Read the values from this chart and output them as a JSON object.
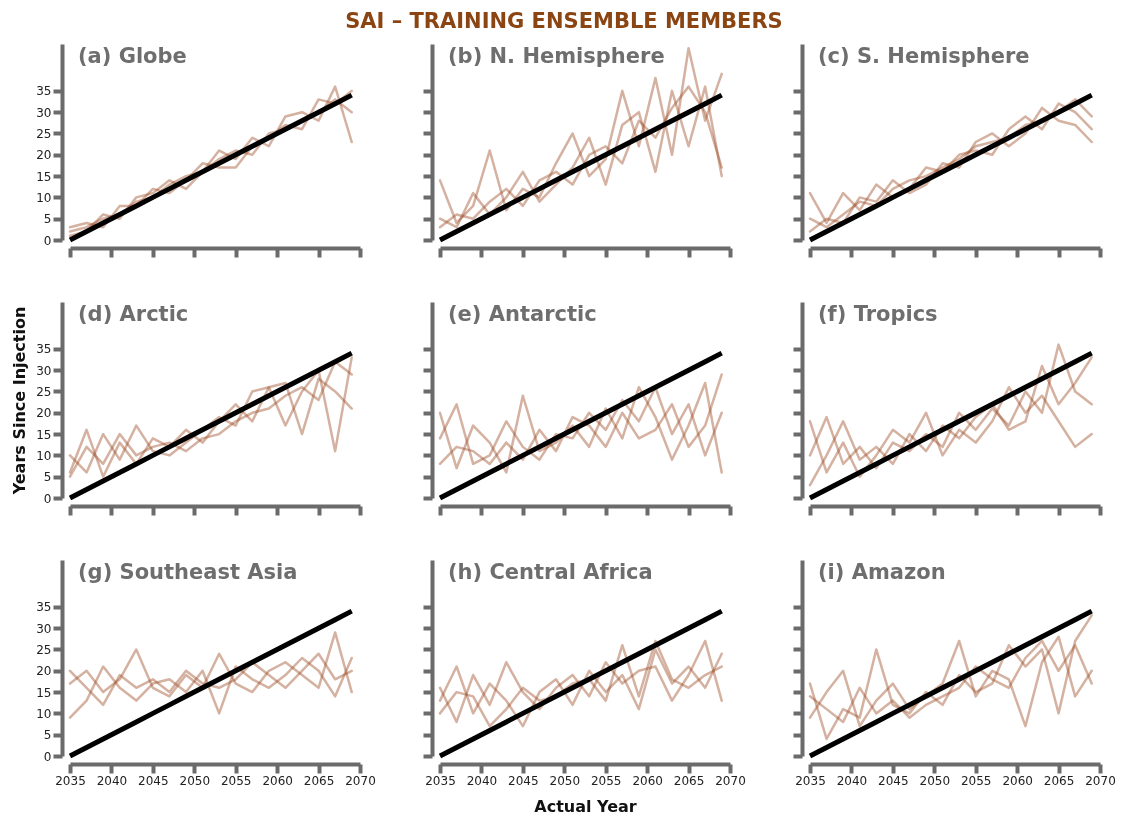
{
  "chart_data": [
    {
      "type": "line",
      "title": "(a) Globe",
      "annotations": [
        "SAI – TRAINING ENSEMBLE MEMBERS"
      ],
      "x": [
        2035,
        2037,
        2039,
        2041,
        2043,
        2045,
        2047,
        2049,
        2051,
        2053,
        2055,
        2057,
        2059,
        2061,
        2063,
        2065,
        2067,
        2069
      ],
      "xlim": [
        2035,
        2070
      ],
      "xticks": [
        2035,
        2040,
        2045,
        2050,
        2055,
        2060,
        2065,
        2070
      ],
      "ylim": [
        0,
        46
      ],
      "yticks": [
        0,
        5,
        10,
        15,
        20,
        25,
        30,
        35
      ],
      "tick_labels": "y",
      "series": [
        {
          "color": "#a0522d",
          "values": [
            2,
            3,
            5,
            6,
            9,
            10,
            13,
            15,
            16,
            19,
            21,
            20,
            25,
            26,
            28,
            30,
            33,
            30
          ]
        },
        {
          "color": "#a0522d",
          "values": [
            3,
            4,
            3,
            8,
            8,
            12,
            11,
            14,
            18,
            17,
            17,
            22,
            24,
            27,
            26,
            33,
            32,
            35
          ]
        },
        {
          "color": "#a0522d",
          "values": [
            1,
            2,
            6,
            5,
            10,
            11,
            14,
            12,
            16,
            21,
            19,
            24,
            22,
            29,
            30,
            28,
            36,
            23
          ]
        },
        {
          "type": "line",
          "color": "#000000",
          "values": [
            0,
            2,
            4,
            6,
            8,
            10,
            12,
            14,
            16,
            18,
            20,
            22,
            24,
            26,
            28,
            30,
            32,
            34
          ]
        }
      ]
    },
    {
      "type": "line",
      "title": "(b) N. Hemisphere",
      "x": [
        2035,
        2037,
        2039,
        2041,
        2043,
        2045,
        2047,
        2049,
        2051,
        2053,
        2055,
        2057,
        2059,
        2061,
        2063,
        2065,
        2067,
        2069
      ],
      "xlim": [
        2035,
        2070
      ],
      "xticks": [
        2035,
        2040,
        2045,
        2050,
        2055,
        2060,
        2065,
        2070
      ],
      "ylim": [
        0,
        46
      ],
      "yticks": [
        0,
        5,
        10,
        15,
        20,
        25,
        30,
        35
      ],
      "tick_labels": false,
      "series": [
        {
          "color": "#a0522d",
          "values": [
            3,
            6,
            5,
            9,
            12,
            8,
            14,
            16,
            13,
            20,
            22,
            18,
            28,
            24,
            31,
            36,
            30,
            17
          ]
        },
        {
          "color": "#a0522d",
          "values": [
            14,
            4,
            8,
            21,
            7,
            12,
            10,
            18,
            25,
            15,
            19,
            35,
            22,
            38,
            20,
            45,
            28,
            39
          ]
        },
        {
          "color": "#a0522d",
          "values": [
            5,
            3,
            11,
            6,
            10,
            16,
            9,
            13,
            17,
            24,
            13,
            27,
            30,
            16,
            35,
            22,
            36,
            15
          ]
        },
        {
          "type": "line",
          "color": "#000000",
          "values": [
            0,
            2,
            4,
            6,
            8,
            10,
            12,
            14,
            16,
            18,
            20,
            22,
            24,
            26,
            28,
            30,
            32,
            34
          ]
        }
      ]
    },
    {
      "type": "line",
      "title": "(c) S. Hemisphere",
      "x": [
        2035,
        2037,
        2039,
        2041,
        2043,
        2045,
        2047,
        2049,
        2051,
        2053,
        2055,
        2057,
        2059,
        2061,
        2063,
        2065,
        2067,
        2069
      ],
      "xlim": [
        2035,
        2070
      ],
      "xticks": [
        2035,
        2040,
        2045,
        2050,
        2055,
        2060,
        2065,
        2070
      ],
      "ylim": [
        0,
        46
      ],
      "yticks": [
        0,
        5,
        10,
        15,
        20,
        25,
        30,
        35
      ],
      "tick_labels": false,
      "series": [
        {
          "color": "#a0522d",
          "values": [
            5,
            3,
            6,
            9,
            8,
            12,
            14,
            15,
            17,
            19,
            22,
            23,
            24,
            27,
            28,
            30,
            33,
            29
          ]
        },
        {
          "color": "#a0522d",
          "values": [
            11,
            4,
            11,
            7,
            13,
            10,
            12,
            17,
            16,
            20,
            21,
            20,
            26,
            29,
            26,
            32,
            30,
            26
          ]
        },
        {
          "color": "#a0522d",
          "values": [
            2,
            5,
            4,
            10,
            9,
            14,
            11,
            13,
            18,
            17,
            23,
            25,
            22,
            25,
            31,
            28,
            27,
            23
          ]
        },
        {
          "type": "line",
          "color": "#000000",
          "values": [
            0,
            2,
            4,
            6,
            8,
            10,
            12,
            14,
            16,
            18,
            20,
            22,
            24,
            26,
            28,
            30,
            32,
            34
          ]
        }
      ]
    },
    {
      "type": "line",
      "title": "(d) Arctic",
      "ylabel": "Years Since Injection",
      "x": [
        2035,
        2037,
        2039,
        2041,
        2043,
        2045,
        2047,
        2049,
        2051,
        2053,
        2055,
        2057,
        2059,
        2061,
        2063,
        2065,
        2067,
        2069
      ],
      "xlim": [
        2035,
        2070
      ],
      "xticks": [
        2035,
        2040,
        2045,
        2050,
        2055,
        2060,
        2065,
        2070
      ],
      "ylim": [
        0,
        46
      ],
      "yticks": [
        0,
        5,
        10,
        15,
        20,
        25,
        30,
        35
      ],
      "tick_labels": "y",
      "series": [
        {
          "color": "#a0522d",
          "values": [
            5,
            12,
            8,
            15,
            10,
            12,
            13,
            11,
            14,
            15,
            18,
            20,
            21,
            24,
            26,
            23,
            32,
            29
          ]
        },
        {
          "color": "#a0522d",
          "values": [
            10,
            6,
            15,
            9,
            17,
            11,
            10,
            13,
            16,
            19,
            17,
            25,
            26,
            17,
            25,
            30,
            11,
            33
          ]
        },
        {
          "color": "#a0522d",
          "values": [
            6,
            16,
            5,
            13,
            8,
            14,
            12,
            16,
            13,
            18,
            22,
            18,
            26,
            27,
            15,
            28,
            25,
            21
          ]
        },
        {
          "type": "line",
          "color": "#000000",
          "values": [
            0,
            2,
            4,
            6,
            8,
            10,
            12,
            14,
            16,
            18,
            20,
            22,
            24,
            26,
            28,
            30,
            32,
            34
          ]
        }
      ]
    },
    {
      "type": "line",
      "title": "(e) Antarctic",
      "x": [
        2035,
        2037,
        2039,
        2041,
        2043,
        2045,
        2047,
        2049,
        2051,
        2053,
        2055,
        2057,
        2059,
        2061,
        2063,
        2065,
        2067,
        2069
      ],
      "xlim": [
        2035,
        2070
      ],
      "xticks": [
        2035,
        2040,
        2045,
        2050,
        2055,
        2060,
        2065,
        2070
      ],
      "ylim": [
        0,
        46
      ],
      "yticks": [
        0,
        5,
        10,
        15,
        20,
        25,
        30,
        35
      ],
      "tick_labels": false,
      "series": [
        {
          "color": "#a0522d",
          "values": [
            14,
            22,
            8,
            10,
            18,
            12,
            9,
            15,
            14,
            20,
            16,
            23,
            18,
            26,
            15,
            22,
            10,
            20
          ]
        },
        {
          "color": "#a0522d",
          "values": [
            20,
            7,
            17,
            13,
            6,
            24,
            11,
            13,
            17,
            12,
            21,
            14,
            26,
            19,
            9,
            17,
            27,
            6
          ]
        },
        {
          "color": "#a0522d",
          "values": [
            8,
            12,
            11,
            8,
            13,
            9,
            16,
            11,
            19,
            17,
            12,
            20,
            14,
            16,
            22,
            12,
            17,
            29
          ]
        },
        {
          "type": "line",
          "color": "#000000",
          "values": [
            0,
            2,
            4,
            6,
            8,
            10,
            12,
            14,
            16,
            18,
            20,
            22,
            24,
            26,
            28,
            30,
            32,
            34
          ]
        }
      ]
    },
    {
      "type": "line",
      "title": "(f) Tropics",
      "x": [
        2035,
        2037,
        2039,
        2041,
        2043,
        2045,
        2047,
        2049,
        2051,
        2053,
        2055,
        2057,
        2059,
        2061,
        2063,
        2065,
        2067,
        2069
      ],
      "xlim": [
        2035,
        2070
      ],
      "xticks": [
        2035,
        2040,
        2045,
        2050,
        2055,
        2060,
        2065,
        2070
      ],
      "ylim": [
        0,
        46
      ],
      "yticks": [
        0,
        5,
        10,
        15,
        20,
        25,
        30,
        35
      ],
      "tick_labels": false,
      "series": [
        {
          "color": "#a0522d",
          "values": [
            3,
            10,
            18,
            9,
            12,
            8,
            15,
            11,
            17,
            14,
            19,
            22,
            16,
            18,
            31,
            22,
            27,
            33
          ]
        },
        {
          "color": "#a0522d",
          "values": [
            18,
            6,
            13,
            5,
            10,
            16,
            13,
            20,
            10,
            16,
            13,
            18,
            26,
            20,
            24,
            18,
            12,
            15
          ]
        },
        {
          "color": "#a0522d",
          "values": [
            10,
            19,
            8,
            12,
            7,
            13,
            11,
            15,
            12,
            20,
            16,
            21,
            17,
            25,
            20,
            36,
            25,
            22
          ]
        },
        {
          "type": "line",
          "color": "#000000",
          "values": [
            0,
            2,
            4,
            6,
            8,
            10,
            12,
            14,
            16,
            18,
            20,
            22,
            24,
            26,
            28,
            30,
            32,
            34
          ]
        }
      ]
    },
    {
      "type": "line",
      "title": "(g) Southeast Asia",
      "x": [
        2035,
        2037,
        2039,
        2041,
        2043,
        2045,
        2047,
        2049,
        2051,
        2053,
        2055,
        2057,
        2059,
        2061,
        2063,
        2065,
        2067,
        2069
      ],
      "xlim": [
        2035,
        2070
      ],
      "xticks": [
        2035,
        2040,
        2045,
        2050,
        2055,
        2060,
        2065,
        2070
      ],
      "ylim": [
        0,
        46
      ],
      "yticks": [
        0,
        5,
        10,
        15,
        20,
        25,
        30,
        35
      ],
      "series": [
        {
          "color": "#a0522d",
          "values": [
            17,
            20,
            15,
            18,
            25,
            16,
            14,
            19,
            16,
            24,
            17,
            15,
            20,
            22,
            19,
            16,
            29,
            15
          ]
        },
        {
          "color": "#a0522d",
          "values": [
            9,
            13,
            21,
            16,
            13,
            17,
            18,
            15,
            20,
            10,
            21,
            18,
            16,
            19,
            23,
            20,
            14,
            23
          ]
        },
        {
          "color": "#a0522d",
          "values": [
            20,
            16,
            12,
            19,
            16,
            18,
            15,
            20,
            17,
            16,
            18,
            22,
            19,
            16,
            20,
            24,
            18,
            20
          ]
        },
        {
          "type": "line",
          "color": "#000000",
          "values": [
            0,
            2,
            4,
            6,
            8,
            10,
            12,
            14,
            16,
            18,
            20,
            22,
            24,
            26,
            28,
            30,
            32,
            34
          ]
        }
      ]
    },
    {
      "type": "line",
      "title": "(h) Central Africa",
      "xlabel": "Actual Year",
      "x": [
        2035,
        2037,
        2039,
        2041,
        2043,
        2045,
        2047,
        2049,
        2051,
        2053,
        2055,
        2057,
        2059,
        2061,
        2063,
        2065,
        2067,
        2069
      ],
      "xlim": [
        2035,
        2070
      ],
      "xticks": [
        2035,
        2040,
        2045,
        2050,
        2055,
        2060,
        2065,
        2070
      ],
      "ylim": [
        0,
        46
      ],
      "yticks": [
        0,
        5,
        10,
        15,
        20,
        25,
        30,
        35
      ],
      "tick_labels": "x",
      "series": [
        {
          "color": "#a0522d",
          "values": [
            13,
            21,
            10,
            17,
            13,
            7,
            15,
            18,
            12,
            20,
            15,
            19,
            11,
            25,
            17,
            21,
            16,
            24
          ]
        },
        {
          "color": "#a0522d",
          "values": [
            16,
            8,
            19,
            12,
            22,
            15,
            11,
            16,
            19,
            14,
            22,
            17,
            20,
            21,
            13,
            19,
            27,
            13
          ]
        },
        {
          "color": "#a0522d",
          "values": [
            10,
            15,
            14,
            7,
            11,
            16,
            13,
            14,
            17,
            18,
            13,
            26,
            14,
            27,
            18,
            16,
            19,
            21
          ]
        },
        {
          "type": "line",
          "color": "#000000",
          "values": [
            0,
            2,
            4,
            6,
            8,
            10,
            12,
            14,
            16,
            18,
            20,
            22,
            24,
            26,
            28,
            30,
            32,
            34
          ]
        }
      ]
    },
    {
      "type": "line",
      "title": "(i) Amazon",
      "x": [
        2035,
        2037,
        2039,
        2041,
        2043,
        2045,
        2047,
        2049,
        2051,
        2053,
        2055,
        2057,
        2059,
        2061,
        2063,
        2065,
        2067,
        2069
      ],
      "xlim": [
        2035,
        2070
      ],
      "xticks": [
        2035,
        2040,
        2045,
        2050,
        2055,
        2060,
        2065,
        2070
      ],
      "ylim": [
        0,
        46
      ],
      "yticks": [
        0,
        5,
        10,
        15,
        20,
        25,
        30,
        35
      ],
      "tick_labels": "x",
      "series": [
        {
          "color": "#a0522d",
          "values": [
            17,
            4,
            11,
            9,
            25,
            12,
            10,
            15,
            12,
            19,
            15,
            17,
            26,
            21,
            25,
            10,
            27,
            33
          ]
        },
        {
          "color": "#a0522d",
          "values": [
            9,
            15,
            20,
            7,
            13,
            17,
            11,
            14,
            17,
            27,
            14,
            20,
            18,
            7,
            22,
            28,
            14,
            20
          ]
        },
        {
          "color": "#a0522d",
          "values": [
            14,
            11,
            8,
            16,
            10,
            13,
            9,
            12,
            14,
            16,
            21,
            18,
            16,
            23,
            27,
            20,
            26,
            17
          ]
        },
        {
          "type": "line",
          "color": "#000000",
          "values": [
            0,
            2,
            4,
            6,
            8,
            10,
            12,
            14,
            16,
            18,
            20,
            22,
            24,
            26,
            28,
            30,
            32,
            34
          ]
        }
      ]
    }
  ]
}
